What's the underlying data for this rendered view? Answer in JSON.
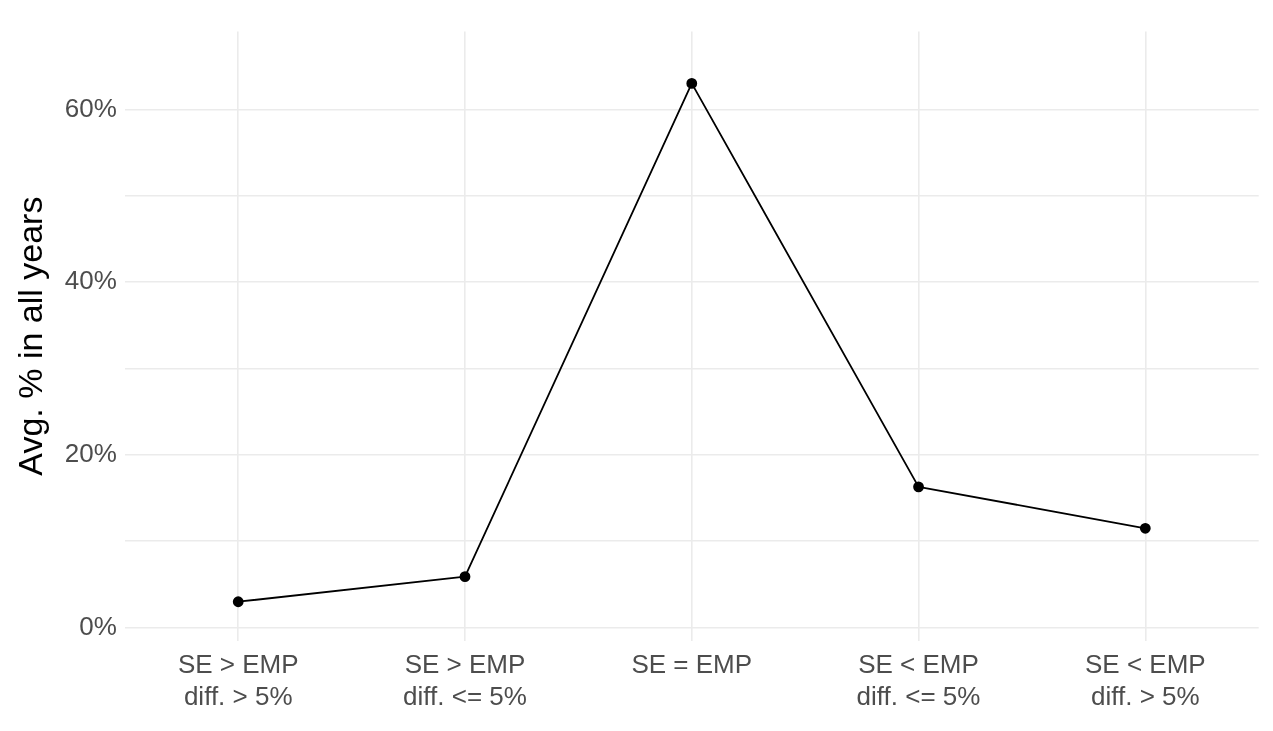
{
  "chart_data": {
    "type": "line",
    "ylabel": "Avg. % in all years",
    "categories": [
      "SE > EMP\ndiff. > 5%",
      "SE > EMP\ndiff. <= 5%",
      "SE = EMP",
      "SE < EMP\ndiff. <= 5%",
      "SE < EMP\ndiff. > 5%"
    ],
    "values": [
      3.0,
      5.9,
      63.0,
      16.3,
      11.5
    ],
    "color": "#000000",
    "marker": "circle",
    "ylim": [
      -1.5,
      69
    ],
    "yticks": [
      {
        "value": 0,
        "label": "0%"
      },
      {
        "value": 10,
        "label": null
      },
      {
        "value": 20,
        "label": "20%"
      },
      {
        "value": 30,
        "label": null
      },
      {
        "value": 40,
        "label": "40%"
      },
      {
        "value": 50,
        "label": null
      },
      {
        "value": 60,
        "label": "60%"
      }
    ],
    "grid": true
  }
}
